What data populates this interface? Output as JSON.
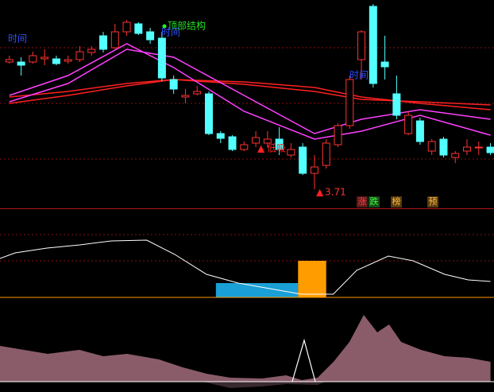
{
  "chart_data": [
    {
      "type": "candlestick",
      "xlim": [
        -0.8,
        41.3
      ],
      "ylim": [
        3.59,
        4.9
      ],
      "yticks": [
        3.9,
        4.25,
        4.6
      ],
      "grid": true,
      "up_color": "#ff3232",
      "down_color": "#54ffff",
      "open": [
        4.51,
        4.51,
        4.51,
        4.53,
        4.53,
        4.515,
        4.525,
        4.57,
        4.675,
        4.6,
        4.7,
        4.75,
        4.7,
        4.66,
        4.4,
        4.29,
        4.31,
        4.31,
        4.06,
        4.04,
        3.96,
        4.0,
        4.0,
        4.025,
        3.925,
        3.975,
        3.81,
        3.86,
        3.99,
        4.11,
        4.525,
        4.86,
        4.51,
        4.31,
        4.06,
        4.14,
        3.95,
        4.025,
        3.91,
        3.95,
        3.97,
        3.975
      ],
      "close": [
        4.525,
        4.49,
        4.55,
        4.54,
        4.5,
        4.525,
        4.575,
        4.59,
        4.59,
        4.7,
        4.76,
        4.69,
        4.65,
        4.41,
        4.34,
        4.3,
        4.325,
        4.06,
        4.03,
        3.96,
        3.99,
        4.035,
        4.025,
        3.96,
        3.96,
        3.81,
        3.85,
        4.0,
        4.11,
        4.4,
        4.7,
        4.375,
        4.48,
        4.175,
        4.175,
        4.01,
        4.01,
        3.925,
        3.935,
        3.975,
        3.975,
        3.94
      ],
      "high": [
        4.55,
        4.54,
        4.575,
        4.59,
        4.55,
        4.55,
        4.61,
        4.61,
        4.7,
        4.75,
        4.775,
        4.76,
        4.725,
        4.7,
        4.425,
        4.34,
        4.36,
        4.325,
        4.075,
        4.05,
        4.01,
        4.075,
        4.075,
        4.1,
        4.0,
        4.0,
        3.925,
        4.025,
        4.125,
        4.425,
        4.71,
        4.875,
        4.675,
        4.425,
        4.2,
        4.16,
        4.025,
        4.04,
        3.95,
        4.025,
        4.01,
        4.0
      ],
      "low": [
        4.5,
        4.425,
        4.5,
        4.49,
        4.49,
        4.5,
        4.51,
        4.55,
        4.57,
        4.59,
        4.675,
        4.68,
        4.625,
        4.39,
        4.31,
        4.25,
        4.3,
        4.05,
        4.0,
        3.95,
        3.95,
        3.975,
        3.975,
        3.925,
        3.91,
        3.8,
        3.71,
        3.84,
        3.975,
        4.09,
        4.4,
        4.35,
        4.4,
        4.15,
        4.05,
        3.99,
        3.925,
        3.91,
        3.875,
        3.925,
        3.925,
        3.925
      ],
      "series": [
        {
          "color": "#ff2020",
          "x": [
            0,
            5,
            10,
            14,
            20,
            26,
            30,
            35,
            41
          ],
          "values": [
            4.25,
            4.3,
            4.36,
            4.4,
            4.385,
            4.35,
            4.29,
            4.25,
            4.21
          ]
        },
        {
          "color": "#ff2020",
          "x": [
            0,
            5,
            10,
            14,
            20,
            26,
            30,
            35,
            41
          ],
          "values": [
            4.29,
            4.325,
            4.375,
            4.4,
            4.37,
            4.325,
            4.275,
            4.26,
            4.24
          ]
        },
        {
          "color": "#ff40ff",
          "x": [
            0,
            5,
            10,
            14,
            20,
            26,
            30,
            35,
            41
          ],
          "values": [
            4.26,
            4.375,
            4.59,
            4.54,
            4.3,
            4.06,
            4.15,
            4.21,
            4.15
          ]
        },
        {
          "color": "#ff40ff",
          "x": [
            0,
            5,
            10,
            14,
            20,
            26,
            30,
            35,
            41
          ],
          "values": [
            4.3,
            4.425,
            4.625,
            4.475,
            4.2,
            4.025,
            4.075,
            4.175,
            4.05
          ]
        }
      ],
      "annotations": [
        "时间",
        "顶部结构",
        "时间",
        "低吸",
        "时间"
      ],
      "buttons": [
        "涨",
        "跌",
        "榜",
        "预"
      ]
    },
    {
      "type": "line",
      "xlim": [
        -0.8,
        41.3
      ],
      "ylim": [
        0,
        112
      ],
      "yticks": [
        46,
        79
      ],
      "grid": true,
      "x": [
        -0.8,
        0.5,
        3.2,
        6,
        8.7,
        11.7,
        14.1,
        16.8,
        19.5,
        24.9,
        27.6,
        29.6,
        32.3,
        34.4,
        37.1,
        39.1,
        41
      ],
      "values": [
        49,
        56,
        62,
        66,
        71,
        72,
        54,
        29,
        18,
        4,
        4,
        34,
        52,
        46,
        29,
        22,
        20
      ],
      "color": "#ffffff",
      "bars": [
        {
          "x0": 17.6,
          "x1": 24.6,
          "value": 18,
          "color": "#1a9fd6"
        },
        {
          "x0": 24.6,
          "x1": 27.0,
          "value": 46,
          "color": "#ff9c00"
        }
      ],
      "baseline_color": "#ff9c00"
    },
    {
      "type": "area",
      "xlim": [
        -0.8,
        41.3
      ],
      "ylim": [
        -13,
        102
      ],
      "x": [
        -0.8,
        1.23,
        3.26,
        5.97,
        8.0,
        10.03,
        12.74,
        14.77,
        16.8,
        18.83,
        21.53,
        23.57,
        24.92,
        26.27,
        27.63,
        28.98,
        30.2,
        31.35,
        32.36,
        33.38,
        35.07,
        37.1,
        39.13,
        41.0
      ],
      "values": [
        45,
        40,
        35,
        40,
        32,
        35,
        28,
        18,
        10,
        5,
        4,
        8,
        2,
        5,
        25,
        50,
        84,
        62,
        72,
        50,
        40,
        32,
        30,
        25
      ],
      "color": "#8a5c6a",
      "spike": {
        "x": [
          24.1,
          25.12,
          26.07
        ],
        "values": [
          0,
          52,
          0
        ],
        "color": "#ffffff"
      },
      "dip": {
        "x": [
          16.46,
          18.83,
          21.53,
          23.57,
          26.27,
          26.95
        ],
        "values": [
          0,
          -8,
          -6,
          -3,
          -4,
          0
        ],
        "color": "#3a2a30"
      },
      "baseline_color": "#ffffff"
    }
  ]
}
